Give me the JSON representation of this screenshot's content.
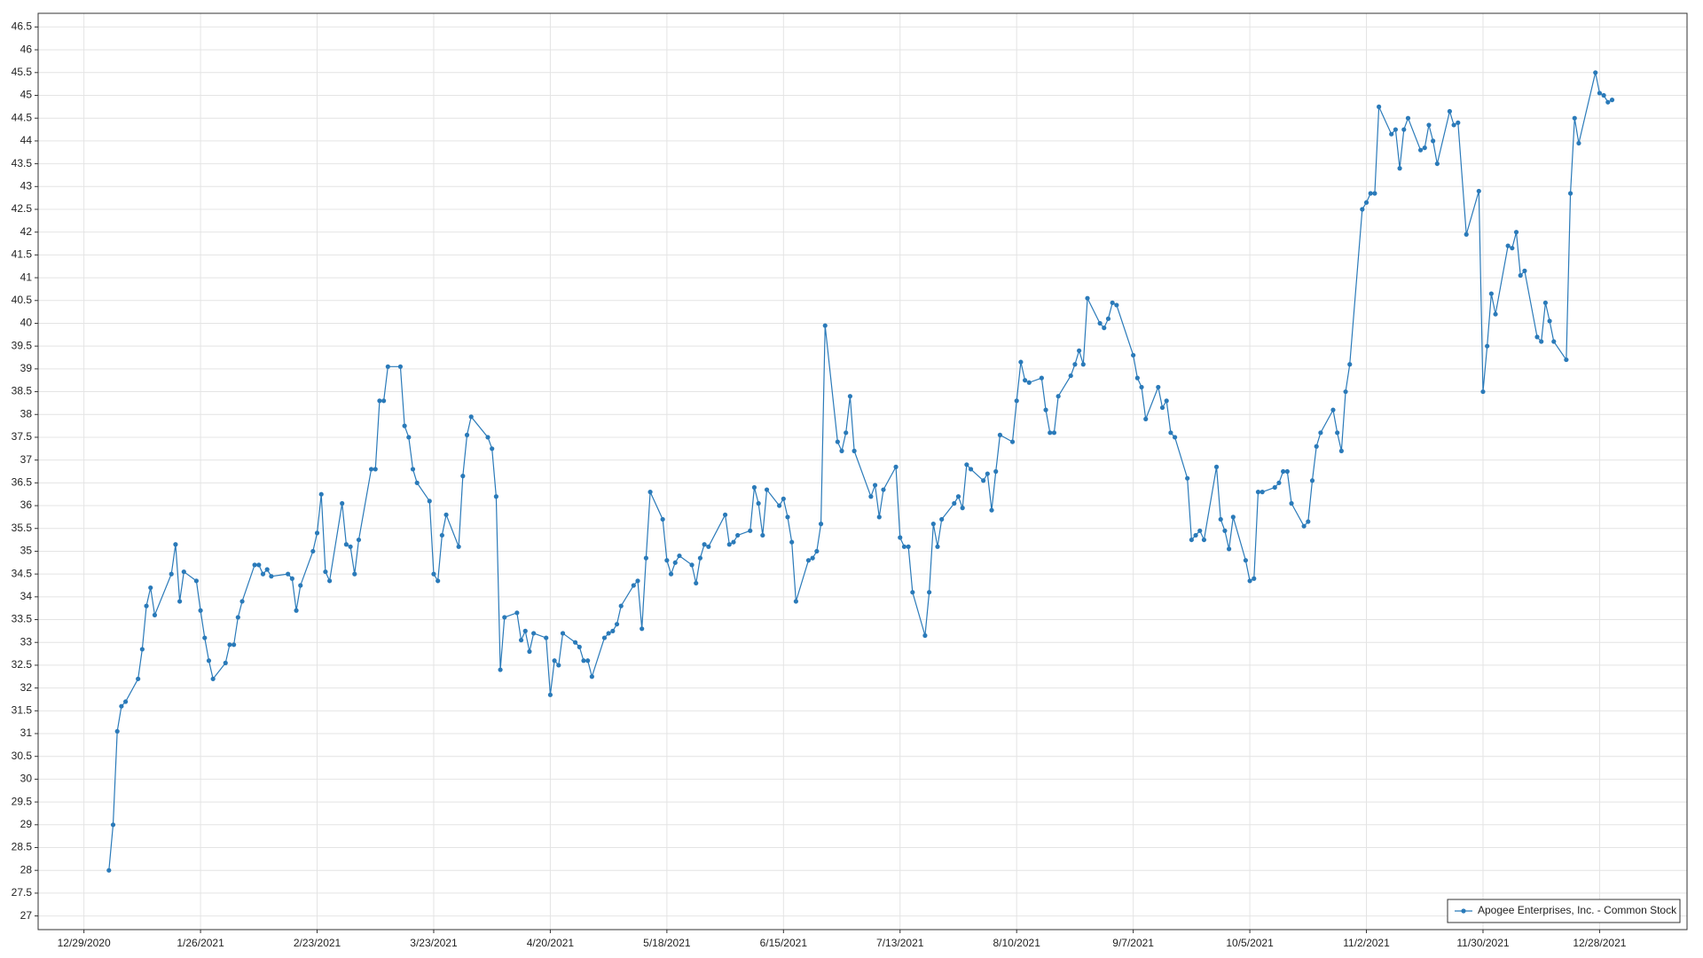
{
  "chart_data": {
    "type": "line",
    "x": [
      "2021-01-04",
      "2021-01-05",
      "2021-01-06",
      "2021-01-07",
      "2021-01-08",
      "2021-01-11",
      "2021-01-12",
      "2021-01-13",
      "2021-01-14",
      "2021-01-15",
      "2021-01-19",
      "2021-01-20",
      "2021-01-21",
      "2021-01-22",
      "2021-01-25",
      "2021-01-26",
      "2021-01-27",
      "2021-01-28",
      "2021-01-29",
      "2021-02-01",
      "2021-02-02",
      "2021-02-03",
      "2021-02-04",
      "2021-02-05",
      "2021-02-08",
      "2021-02-09",
      "2021-02-10",
      "2021-02-11",
      "2021-02-12",
      "2021-02-16",
      "2021-02-17",
      "2021-02-18",
      "2021-02-19",
      "2021-02-22",
      "2021-02-23",
      "2021-02-24",
      "2021-02-25",
      "2021-02-26",
      "2021-03-01",
      "2021-03-02",
      "2021-03-03",
      "2021-03-04",
      "2021-03-05",
      "2021-03-08",
      "2021-03-09",
      "2021-03-10",
      "2021-03-11",
      "2021-03-12",
      "2021-03-15",
      "2021-03-16",
      "2021-03-17",
      "2021-03-18",
      "2021-03-19",
      "2021-03-22",
      "2021-03-23",
      "2021-03-24",
      "2021-03-25",
      "2021-03-26",
      "2021-03-29",
      "2021-03-30",
      "2021-03-31",
      "2021-04-01",
      "2021-04-05",
      "2021-04-06",
      "2021-04-07",
      "2021-04-08",
      "2021-04-09",
      "2021-04-12",
      "2021-04-13",
      "2021-04-14",
      "2021-04-15",
      "2021-04-16",
      "2021-04-19",
      "2021-04-20",
      "2021-04-21",
      "2021-04-22",
      "2021-04-23",
      "2021-04-26",
      "2021-04-27",
      "2021-04-28",
      "2021-04-29",
      "2021-04-30",
      "2021-05-03",
      "2021-05-04",
      "2021-05-05",
      "2021-05-06",
      "2021-05-07",
      "2021-05-10",
      "2021-05-11",
      "2021-05-12",
      "2021-05-13",
      "2021-05-14",
      "2021-05-17",
      "2021-05-18",
      "2021-05-19",
      "2021-05-20",
      "2021-05-21",
      "2021-05-24",
      "2021-05-25",
      "2021-05-26",
      "2021-05-27",
      "2021-05-28",
      "2021-06-01",
      "2021-06-02",
      "2021-06-03",
      "2021-06-04",
      "2021-06-07",
      "2021-06-08",
      "2021-06-09",
      "2021-06-10",
      "2021-06-11",
      "2021-06-14",
      "2021-06-15",
      "2021-06-16",
      "2021-06-17",
      "2021-06-18",
      "2021-06-21",
      "2021-06-22",
      "2021-06-23",
      "2021-06-24",
      "2021-06-25",
      "2021-06-28",
      "2021-06-29",
      "2021-06-30",
      "2021-07-01",
      "2021-07-02",
      "2021-07-06",
      "2021-07-07",
      "2021-07-08",
      "2021-07-09",
      "2021-07-12",
      "2021-07-13",
      "2021-07-14",
      "2021-07-15",
      "2021-07-16",
      "2021-07-19",
      "2021-07-20",
      "2021-07-21",
      "2021-07-22",
      "2021-07-23",
      "2021-07-26",
      "2021-07-27",
      "2021-07-28",
      "2021-07-29",
      "2021-07-30",
      "2021-08-02",
      "2021-08-03",
      "2021-08-04",
      "2021-08-05",
      "2021-08-06",
      "2021-08-09",
      "2021-08-10",
      "2021-08-11",
      "2021-08-12",
      "2021-08-13",
      "2021-08-16",
      "2021-08-17",
      "2021-08-18",
      "2021-08-19",
      "2021-08-20",
      "2021-08-23",
      "2021-08-24",
      "2021-08-25",
      "2021-08-26",
      "2021-08-27",
      "2021-08-30",
      "2021-08-31",
      "2021-09-01",
      "2021-09-02",
      "2021-09-03",
      "2021-09-07",
      "2021-09-08",
      "2021-09-09",
      "2021-09-10",
      "2021-09-13",
      "2021-09-14",
      "2021-09-15",
      "2021-09-16",
      "2021-09-17",
      "2021-09-20",
      "2021-09-21",
      "2021-09-22",
      "2021-09-23",
      "2021-09-24",
      "2021-09-27",
      "2021-09-28",
      "2021-09-29",
      "2021-09-30",
      "2021-10-01",
      "2021-10-04",
      "2021-10-05",
      "2021-10-06",
      "2021-10-07",
      "2021-10-08",
      "2021-10-11",
      "2021-10-12",
      "2021-10-13",
      "2021-10-14",
      "2021-10-15",
      "2021-10-18",
      "2021-10-19",
      "2021-10-20",
      "2021-10-21",
      "2021-10-22",
      "2021-10-25",
      "2021-10-26",
      "2021-10-27",
      "2021-10-28",
      "2021-10-29",
      "2021-11-01",
      "2021-11-02",
      "2021-11-03",
      "2021-11-04",
      "2021-11-05",
      "2021-11-08",
      "2021-11-09",
      "2021-11-10",
      "2021-11-11",
      "2021-11-12",
      "2021-11-15",
      "2021-11-16",
      "2021-11-17",
      "2021-11-18",
      "2021-11-19",
      "2021-11-22",
      "2021-11-23",
      "2021-11-24",
      "2021-11-26",
      "2021-11-29",
      "2021-11-30",
      "2021-12-01",
      "2021-12-02",
      "2021-12-03",
      "2021-12-06",
      "2021-12-07",
      "2021-12-08",
      "2021-12-09",
      "2021-12-10",
      "2021-12-13",
      "2021-12-14",
      "2021-12-15",
      "2021-12-16",
      "2021-12-17",
      "2021-12-20",
      "2021-12-21",
      "2021-12-22",
      "2021-12-23",
      "2021-12-27",
      "2021-12-28",
      "2021-12-29",
      "2021-12-30",
      "2021-12-31"
    ],
    "series": [
      {
        "name": "Apogee Enterprises, Inc. - Common Stock",
        "color": "#2a7ab9",
        "values": [
          28,
          29,
          31.05,
          31.6,
          31.7,
          32.2,
          32.85,
          33.8,
          34.2,
          33.6,
          34.5,
          35.15,
          33.9,
          34.55,
          34.35,
          33.7,
          33.1,
          32.6,
          32.2,
          32.55,
          32.95,
          32.95,
          33.55,
          33.9,
          34.7,
          34.7,
          34.5,
          34.6,
          34.45,
          34.5,
          34.4,
          33.7,
          34.25,
          35,
          35.4,
          36.25,
          34.55,
          34.35,
          36.05,
          35.15,
          35.1,
          34.5,
          35.25,
          36.8,
          36.8,
          38.3,
          38.3,
          39.05,
          39.05,
          37.75,
          37.5,
          36.8,
          36.5,
          36.1,
          34.5,
          34.35,
          35.35,
          35.8,
          35.1,
          36.65,
          37.55,
          37.95,
          37.5,
          37.25,
          36.2,
          32.4,
          33.55,
          33.65,
          33.05,
          33.25,
          32.8,
          33.2,
          33.1,
          31.85,
          32.6,
          32.5,
          33.2,
          33,
          32.9,
          32.6,
          32.6,
          32.25,
          33.1,
          33.2,
          33.25,
          33.4,
          33.8,
          34.25,
          34.35,
          33.3,
          34.85,
          36.3,
          35.7,
          34.8,
          34.5,
          34.75,
          34.9,
          34.7,
          34.3,
          34.85,
          35.15,
          35.1,
          35.8,
          35.15,
          35.2,
          35.35,
          35.45,
          36.4,
          36.05,
          35.35,
          36.35,
          36,
          36.15,
          35.75,
          35.2,
          33.9,
          34.8,
          34.85,
          35,
          35.6,
          39.95,
          37.4,
          37.2,
          37.6,
          38.4,
          37.2,
          36.2,
          36.45,
          35.75,
          36.35,
          36.85,
          35.3,
          35.1,
          35.1,
          34.1,
          33.15,
          34.1,
          35.6,
          35.1,
          35.7,
          36.05,
          36.2,
          35.95,
          36.9,
          36.8,
          36.55,
          36.7,
          35.9,
          36.75,
          37.55,
          37.4,
          38.3,
          39.15,
          38.75,
          38.7,
          38.8,
          38.1,
          37.6,
          37.6,
          38.4,
          38.85,
          39.1,
          39.4,
          39.1,
          40.55,
          40,
          39.9,
          40.1,
          40.45,
          40.4,
          39.3,
          38.8,
          38.6,
          37.9,
          38.6,
          38.15,
          38.3,
          37.6,
          37.5,
          36.6,
          35.25,
          35.35,
          35.45,
          35.25,
          36.85,
          35.7,
          35.45,
          35.05,
          35.75,
          34.8,
          34.35,
          34.4,
          36.3,
          36.3,
          36.4,
          36.5,
          36.75,
          36.75,
          36.05,
          35.55,
          35.65,
          36.55,
          37.3,
          37.6,
          38.1,
          37.6,
          37.2,
          38.5,
          39.1,
          42.5,
          42.65,
          42.85,
          42.85,
          44.75,
          44.15,
          44.25,
          43.4,
          44.25,
          44.5,
          43.8,
          43.85,
          44.35,
          44,
          43.5,
          44.65,
          44.35,
          44.4,
          41.95,
          42.9,
          38.5,
          39.5,
          40.65,
          40.2,
          41.7,
          41.65,
          42,
          41.05,
          41.15,
          39.7,
          39.6,
          40.45,
          40.05,
          39.6,
          39.2,
          42.85,
          44.5,
          43.95,
          45.5,
          45.05,
          45,
          44.85,
          44.9
        ]
      }
    ],
    "xlim": [
      "2020-12-18",
      "2022-01-18"
    ],
    "xticks": [
      {
        "value": "2020-12-29",
        "label": "12/29/2020"
      },
      {
        "value": "2021-01-26",
        "label": "1/26/2021"
      },
      {
        "value": "2021-02-23",
        "label": "2/23/2021"
      },
      {
        "value": "2021-03-23",
        "label": "3/23/2021"
      },
      {
        "value": "2021-04-20",
        "label": "4/20/2021"
      },
      {
        "value": "2021-05-18",
        "label": "5/18/2021"
      },
      {
        "value": "2021-06-15",
        "label": "6/15/2021"
      },
      {
        "value": "2021-07-13",
        "label": "7/13/2021"
      },
      {
        "value": "2021-08-10",
        "label": "8/10/2021"
      },
      {
        "value": "2021-09-07",
        "label": "9/7/2021"
      },
      {
        "value": "2021-10-05",
        "label": "10/5/2021"
      },
      {
        "value": "2021-11-02",
        "label": "11/2/2021"
      },
      {
        "value": "2021-11-30",
        "label": "11/30/2021"
      },
      {
        "value": "2021-12-28",
        "label": "12/28/2021"
      }
    ],
    "ylim": [
      26.7,
      46.8
    ],
    "yticks": [
      27,
      27.5,
      28,
      28.5,
      29,
      29.5,
      30,
      30.5,
      31,
      31.5,
      32,
      32.5,
      33,
      33.5,
      34,
      34.5,
      35,
      35.5,
      36,
      36.5,
      37,
      37.5,
      38,
      38.5,
      39,
      39.5,
      40,
      40.5,
      41,
      41.5,
      42,
      42.5,
      43,
      43.5,
      44,
      44.5,
      45,
      45.5,
      46,
      46.5
    ],
    "grid": true,
    "markers": true,
    "legend": "lower right"
  }
}
